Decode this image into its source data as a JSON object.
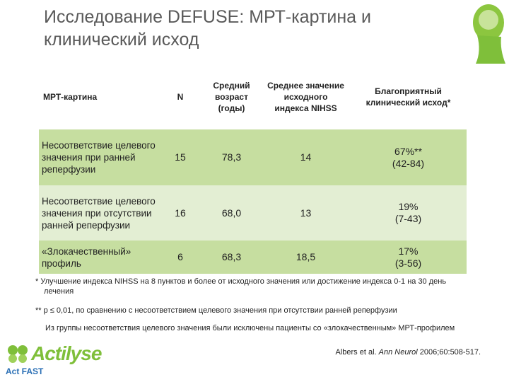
{
  "title": "Исследование DEFUSE: МРТ-картина и клинический исход",
  "table": {
    "header": [
      "МРТ-картина",
      "N",
      "Средний возраст (годы)",
      "Среднее значение исходного индекса NIHSS",
      "Благоприятный клинический исход*"
    ],
    "rows": [
      {
        "label": "Несоответствие целевого значения при ранней реперфузии",
        "n": "15",
        "age": "78,3",
        "nihss": "14",
        "outcome": "67%**",
        "range": "(42-84)"
      },
      {
        "label": "Несоответствие целевого значения при отсутствии ранней реперфузии",
        "n": "16",
        "age": "68,0",
        "nihss": "13",
        "outcome": "19%",
        "range": "(7-43)"
      },
      {
        "label": "«Злокачественный» профиль",
        "n": "6",
        "age": "68,3",
        "nihss": "18,5",
        "outcome": "17%",
        "range": "(3-56)"
      }
    ]
  },
  "footnotes": [
    "*  Улучшение индекса NIHSS на 8 пунктов и более от исходного значения или достижение индекса 0-1 на 30 день лечения",
    "** p ≤ 0,01, по сравнению с несоответствием целевого значения при отсутствии ранней реперфузии",
    "Из группы несоответствия целевого значения были исключены пациенты со «злокачественным» МРТ-профилем"
  ],
  "citation": {
    "authors": "Albers et al.",
    "journal": "Ann Neurol",
    "ref": "2006;60:508-517."
  },
  "logo": {
    "brand": "Actilyse",
    "slogan": "Act FAST"
  }
}
